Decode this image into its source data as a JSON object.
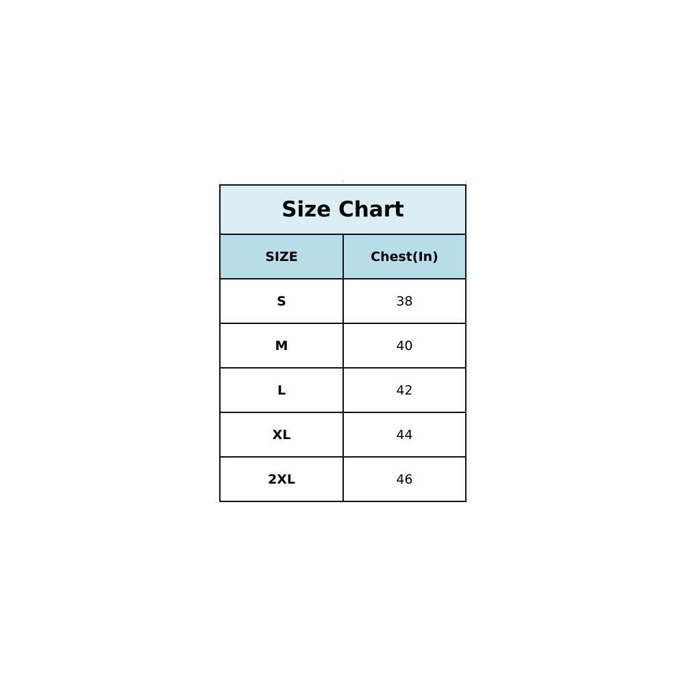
{
  "title": "Size Chart",
  "headers": [
    "SIZE",
    "Chest(In)"
  ],
  "rows": [
    {
      "size": "S",
      "chest": "38"
    },
    {
      "size": "M",
      "chest": "40"
    },
    {
      "size": "L",
      "chest": "42"
    },
    {
      "size": "XL",
      "chest": "44"
    },
    {
      "size": "2XL",
      "chest": "46"
    }
  ],
  "colors": {
    "title_bg": "#daeef3",
    "header_bg": "#b7dde8",
    "border": "#111111"
  }
}
